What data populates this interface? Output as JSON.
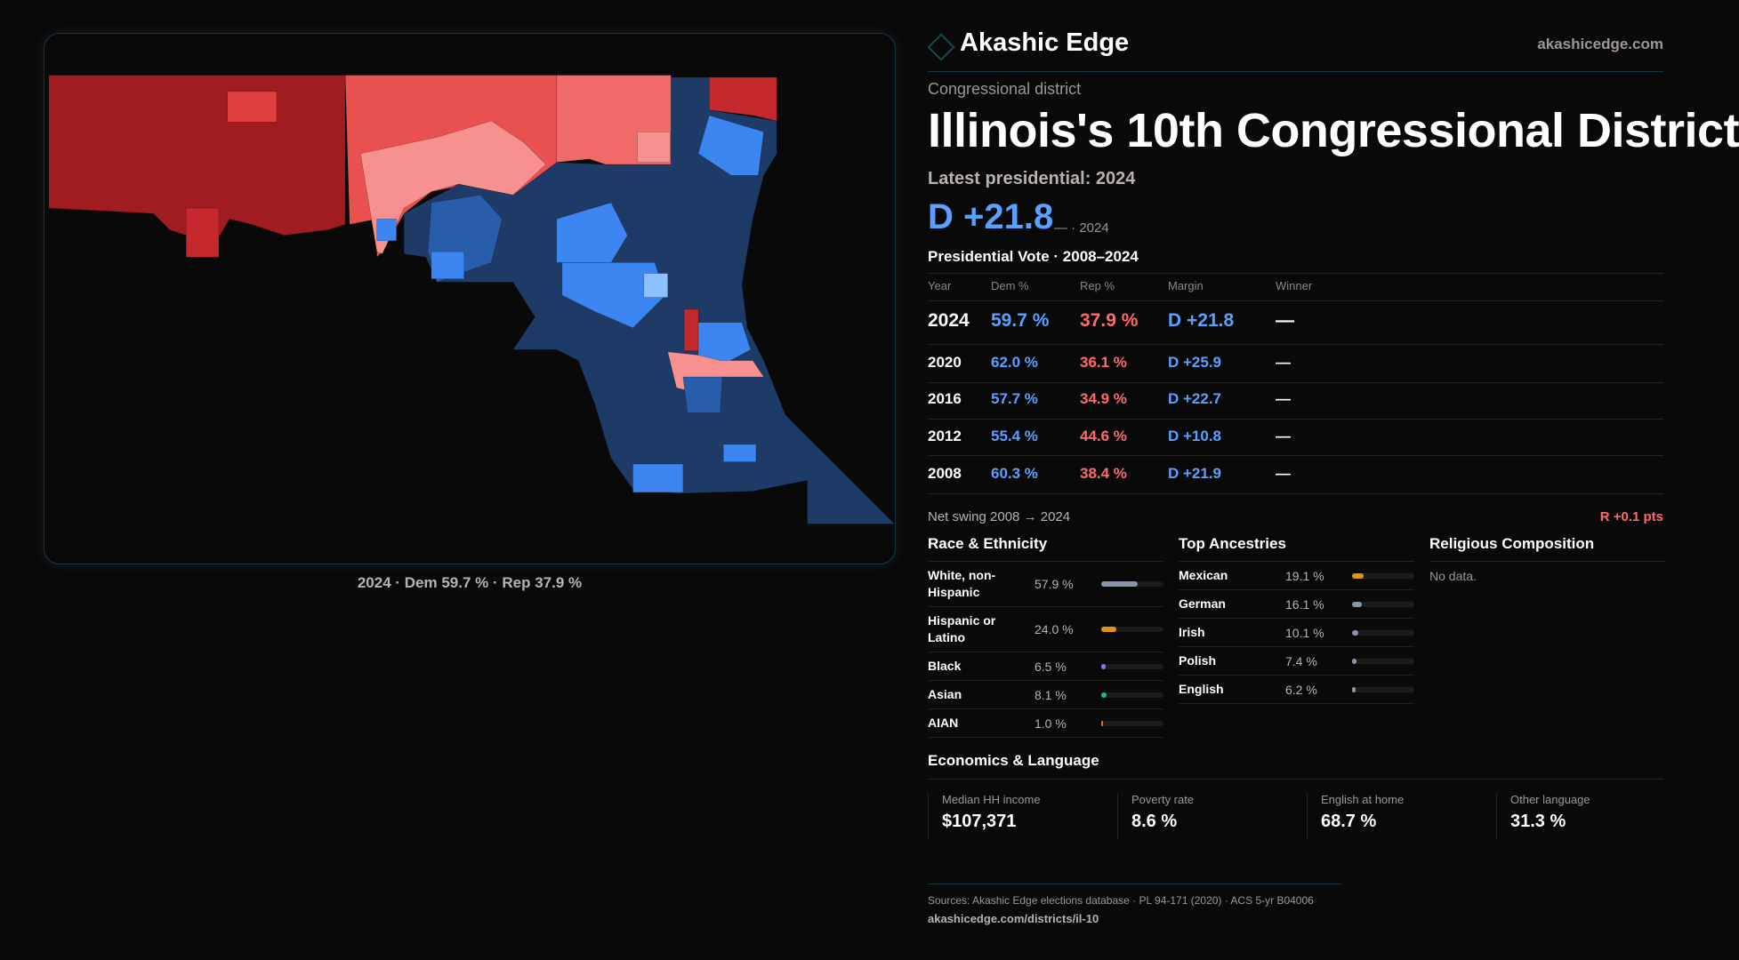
{
  "brand": {
    "name": "Akashic Edge",
    "domain": "akashicedge.com",
    "logo_icon": "diamond-icon"
  },
  "header": {
    "kicker": "Congressional district",
    "title": "Illinois's 10th Congressional District",
    "latest": "Latest presidential: 2024",
    "margin": "D +21.8",
    "margin_sub": "— · 2024"
  },
  "map": {
    "caption": "2024 · Dem 59.7 % · Rep 37.9 %",
    "colors": {
      "safe_r": "#a01c20",
      "likely_r": "#c6292d",
      "lean_r": "#f06a6a",
      "tilt_r": "#f7918f",
      "tilt_d": "#8cc0ff",
      "lean_d": "#3d85f0",
      "likely_d": "#2a5cac",
      "safe_d": "#1d3b66"
    }
  },
  "presidential": {
    "title": "Presidential Vote · 2008–2024",
    "columns": [
      "Year",
      "Dem %",
      "Rep %",
      "Margin",
      "Winner"
    ],
    "rows": [
      {
        "year": "2024",
        "dem": "59.7 %",
        "rep": "37.9 %",
        "margin": "D +21.8",
        "winner": "—"
      },
      {
        "year": "2020",
        "dem": "62.0 %",
        "rep": "36.1 %",
        "margin": "D +25.9",
        "winner": "—"
      },
      {
        "year": "2016",
        "dem": "57.7 %",
        "rep": "34.9 %",
        "margin": "D +22.7",
        "winner": "—"
      },
      {
        "year": "2012",
        "dem": "55.4 %",
        "rep": "44.6 %",
        "margin": "D +10.8",
        "winner": "—"
      },
      {
        "year": "2008",
        "dem": "60.3 %",
        "rep": "38.4 %",
        "margin": "D +21.9",
        "winner": "—"
      }
    ],
    "swing_label": "Net swing 2008 → 2024",
    "swing_value": "R +0.1 pts"
  },
  "race": {
    "title": "Race & Ethnicity",
    "items": [
      {
        "label": "White, non-Hispanic",
        "value": "57.9 %",
        "pct": 57.9,
        "color": "#8a96a8"
      },
      {
        "label": "Hispanic or Latino",
        "value": "24.0 %",
        "pct": 24.0,
        "color": "#e0950f"
      },
      {
        "label": "Black",
        "value": "6.5 %",
        "pct": 6.5,
        "color": "#8e6ee0"
      },
      {
        "label": "Asian",
        "value": "8.1 %",
        "pct": 8.1,
        "color": "#1fb88a"
      },
      {
        "label": "AIAN",
        "value": "1.0 %",
        "pct": 1.0,
        "color": "#e0760f"
      }
    ]
  },
  "ancestry": {
    "title": "Top Ancestries",
    "items": [
      {
        "label": "Mexican",
        "value": "19.1 %",
        "pct": 19.1,
        "color": "#e0950f"
      },
      {
        "label": "German",
        "value": "16.1 %",
        "pct": 16.1,
        "color": "#8a96a8"
      },
      {
        "label": "Irish",
        "value": "10.1 %",
        "pct": 10.1,
        "color": "#8a96a8"
      },
      {
        "label": "Polish",
        "value": "7.4 %",
        "pct": 7.4,
        "color": "#8a96a8"
      },
      {
        "label": "English",
        "value": "6.2 %",
        "pct": 6.2,
        "color": "#8a96a8"
      }
    ]
  },
  "religion": {
    "title": "Religious Composition",
    "empty": "No data."
  },
  "economics": {
    "title": "Economics & Language",
    "stats": [
      {
        "label": "Median HH income",
        "value": "$107,371"
      },
      {
        "label": "Poverty rate",
        "value": "8.6 %"
      },
      {
        "label": "English at home",
        "value": "68.7 %"
      },
      {
        "label": "Other language",
        "value": "31.3 %"
      }
    ]
  },
  "footer": {
    "sources": "Sources: Akashic Edge elections database · PL 94-171 (2020) · ACS 5-yr B04006",
    "url": "akashicedge.com/districts/il-10"
  }
}
